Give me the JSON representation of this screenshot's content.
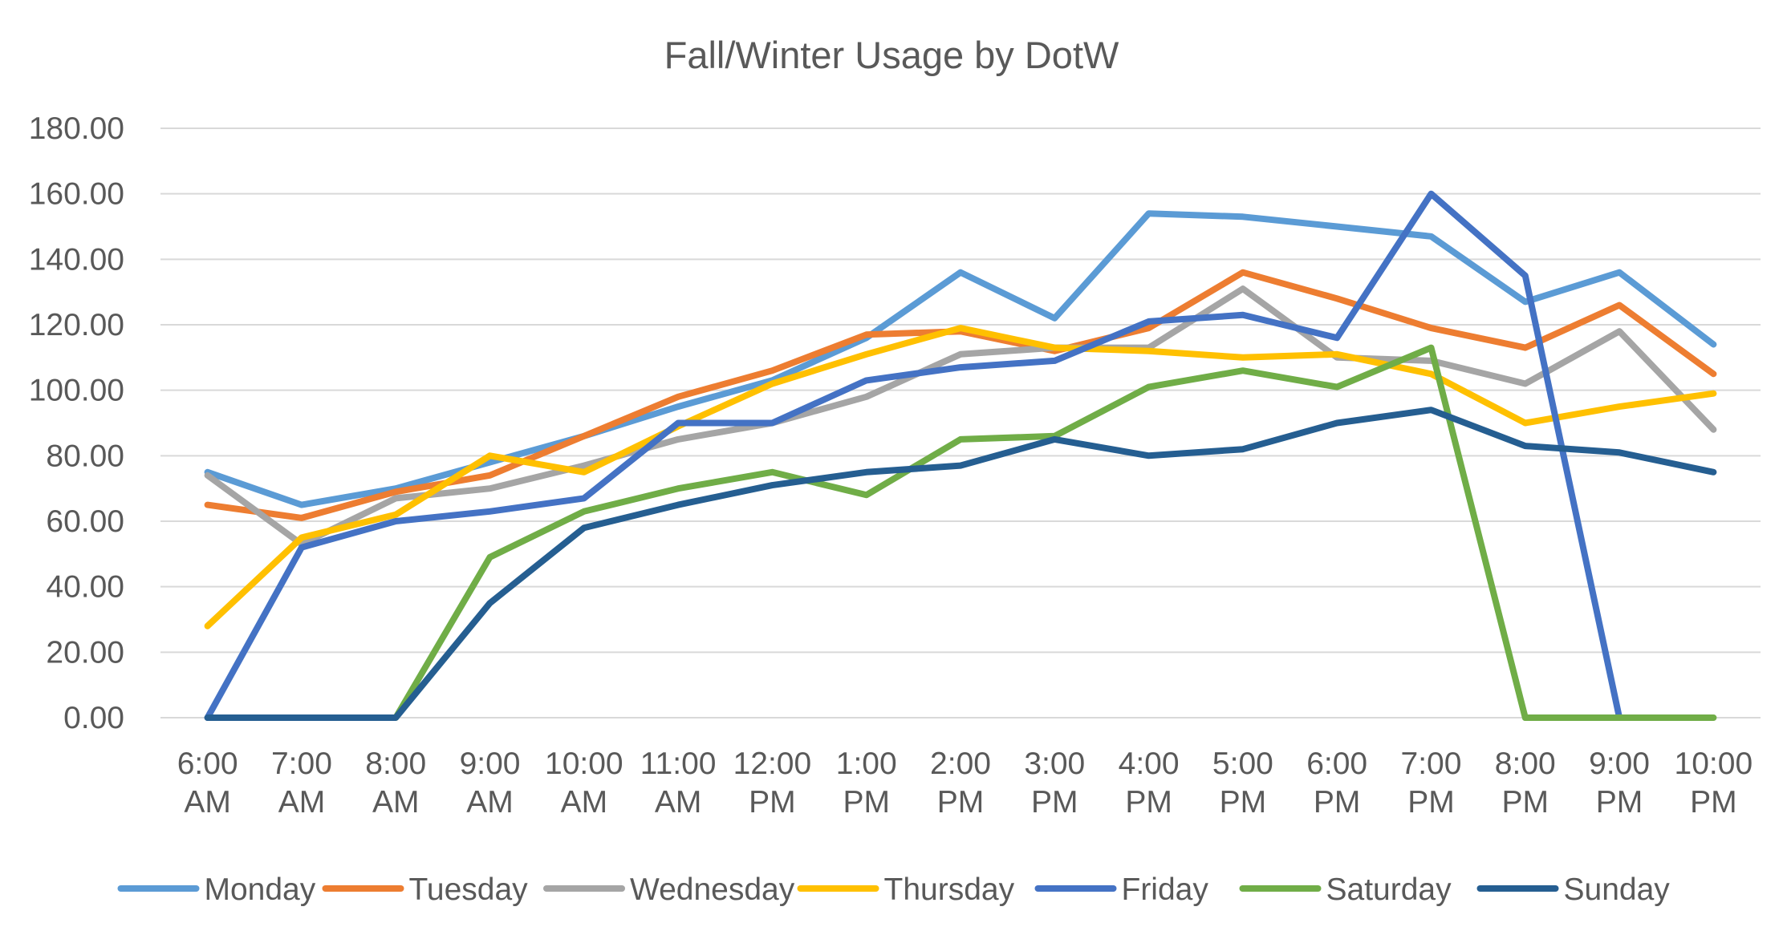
{
  "chart_data": {
    "type": "line",
    "title": "Fall/Winter Usage by DotW",
    "xlabel": "",
    "ylabel": "",
    "ylim": [
      0,
      180
    ],
    "y_ticks": [
      "0.00",
      "20.00",
      "40.00",
      "60.00",
      "80.00",
      "100.00",
      "120.00",
      "140.00",
      "160.00",
      "180.00"
    ],
    "grid": true,
    "legend_position": "bottom",
    "categories": [
      [
        "6:00",
        "AM"
      ],
      [
        "7:00",
        "AM"
      ],
      [
        "8:00",
        "AM"
      ],
      [
        "9:00",
        "AM"
      ],
      [
        "10:00",
        "AM"
      ],
      [
        "11:00",
        "AM"
      ],
      [
        "12:00",
        "PM"
      ],
      [
        "1:00",
        "PM"
      ],
      [
        "2:00",
        "PM"
      ],
      [
        "3:00",
        "PM"
      ],
      [
        "4:00",
        "PM"
      ],
      [
        "5:00",
        "PM"
      ],
      [
        "6:00",
        "PM"
      ],
      [
        "7:00",
        "PM"
      ],
      [
        "8:00",
        "PM"
      ],
      [
        "9:00",
        "PM"
      ],
      [
        "10:00",
        "PM"
      ]
    ],
    "series": [
      {
        "name": "Monday",
        "color": "#5B9BD5",
        "values": [
          75,
          65,
          70,
          78,
          86,
          95,
          103,
          116,
          136,
          122,
          154,
          153,
          150,
          147,
          127,
          136,
          114
        ]
      },
      {
        "name": "Tuesday",
        "color": "#ED7D31",
        "values": [
          65,
          61,
          69,
          74,
          86,
          98,
          106,
          117,
          118,
          112,
          119,
          136,
          128,
          119,
          113,
          126,
          105
        ]
      },
      {
        "name": "Wednesday",
        "color": "#A5A5A5",
        "values": [
          74,
          53,
          67,
          70,
          77,
          85,
          90,
          98,
          111,
          113,
          113,
          131,
          110,
          109,
          102,
          118,
          88
        ]
      },
      {
        "name": "Thursday",
        "color": "#FFC000",
        "values": [
          28,
          55,
          62,
          80,
          75,
          89,
          102,
          111,
          119,
          113,
          112,
          110,
          111,
          105,
          90,
          95,
          99
        ]
      },
      {
        "name": "Friday",
        "color": "#4472C4",
        "values": [
          0,
          52,
          60,
          63,
          67,
          90,
          90,
          103,
          107,
          109,
          121,
          123,
          116,
          160,
          135,
          0,
          null
        ]
      },
      {
        "name": "Saturday",
        "color": "#70AD47",
        "values": [
          null,
          null,
          0,
          49,
          63,
          70,
          75,
          68,
          85,
          86,
          101,
          106,
          101,
          113,
          0,
          0,
          0
        ]
      },
      {
        "name": "Sunday",
        "color": "#255E91",
        "values": [
          0,
          0,
          0,
          35,
          58,
          65,
          71,
          75,
          77,
          85,
          80,
          82,
          90,
          94,
          83,
          81,
          75
        ]
      }
    ]
  }
}
